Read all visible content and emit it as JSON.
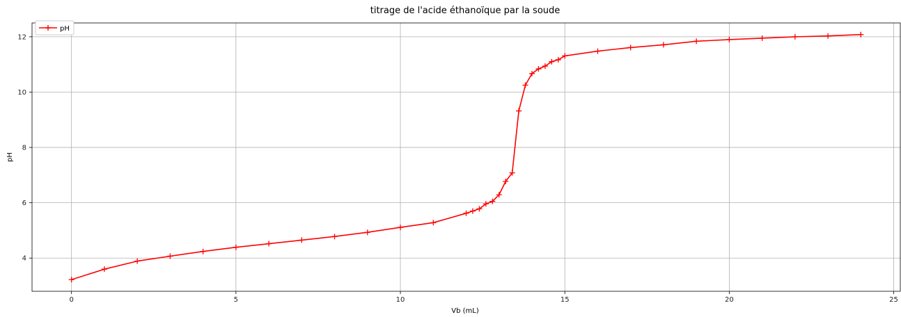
{
  "chart_data": {
    "type": "line",
    "title": "titrage de l'acide éthanoïque par la soude",
    "xlabel": "Vb (mL)",
    "ylabel": "pH",
    "xlim": [
      -1.2,
      25.2
    ],
    "ylim": [
      2.8,
      12.5
    ],
    "xticks": [
      0,
      5,
      10,
      15,
      20,
      25
    ],
    "yticks": [
      4,
      6,
      8,
      10,
      12
    ],
    "grid": true,
    "legend_position": "top-left",
    "series": [
      {
        "name": "pH",
        "color": "#ff0000",
        "marker": "+",
        "x": [
          0,
          1,
          2,
          3,
          4,
          5,
          6,
          7,
          8,
          9,
          10,
          11,
          12,
          12.2,
          12.4,
          12.6,
          12.8,
          13,
          13.2,
          13.4,
          13.6,
          13.8,
          14,
          14.2,
          14.4,
          14.6,
          14.8,
          15,
          16,
          17,
          18,
          19,
          20,
          21,
          22,
          23,
          24
        ],
        "y": [
          3.22,
          3.6,
          3.89,
          4.07,
          4.24,
          4.39,
          4.52,
          4.65,
          4.78,
          4.93,
          5.11,
          5.28,
          5.62,
          5.7,
          5.78,
          5.96,
          6.05,
          6.29,
          6.77,
          7.08,
          9.32,
          10.25,
          10.67,
          10.84,
          10.94,
          11.1,
          11.17,
          11.31,
          11.48,
          11.61,
          11.71,
          11.84,
          11.9,
          11.95,
          12.0,
          12.03,
          12.08
        ]
      }
    ]
  }
}
